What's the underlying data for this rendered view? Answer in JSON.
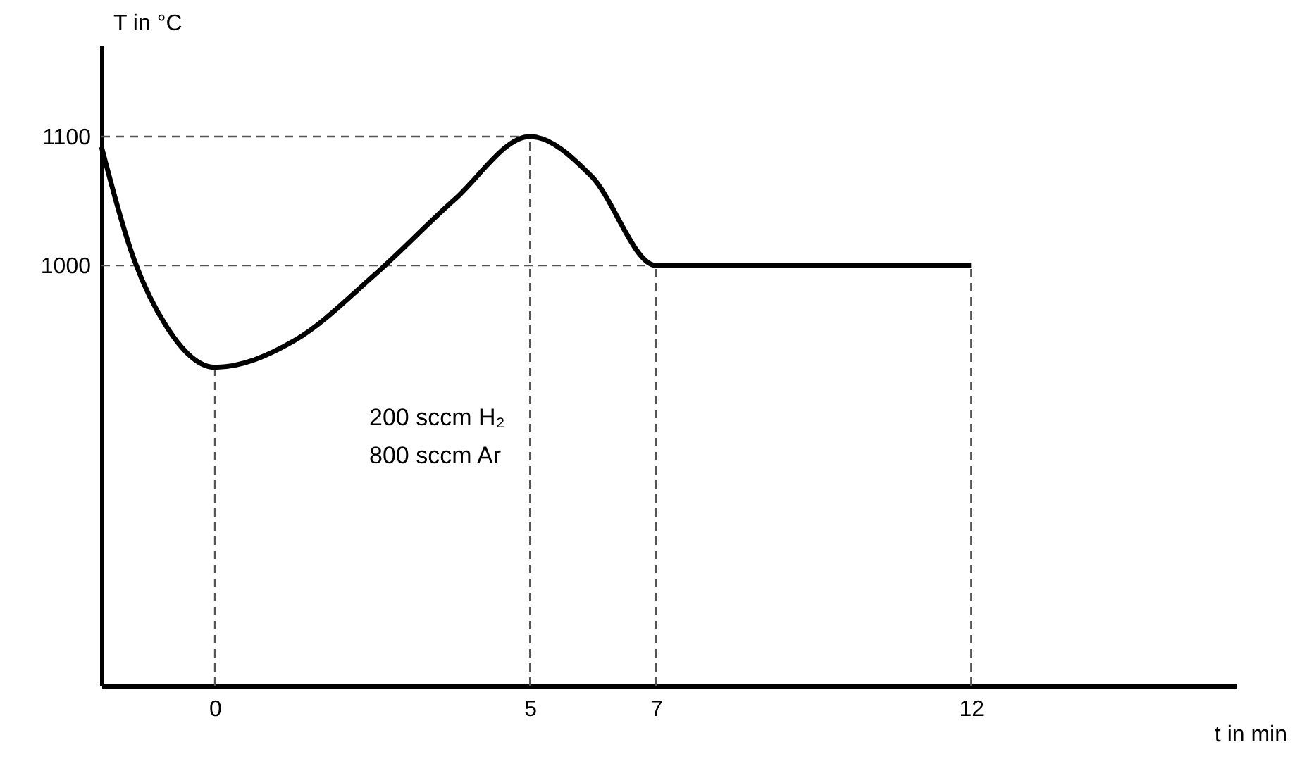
{
  "chart_data": {
    "type": "line",
    "xlabel": "t in min",
    "ylabel": "T in °C",
    "x": [
      -1.8,
      -1.27,
      -0.76,
      0,
      1.27,
      2.54,
      3.8,
      5,
      5.98,
      7,
      12
    ],
    "series": [
      {
        "color": "#000000",
        "values": [
          1092,
          1003,
          952,
          921,
          942,
          993,
          1051,
          1100,
          1069,
          1000,
          1000
        ]
      }
    ],
    "xlim": [
      -1.8,
      16.2
    ],
    "xticks": [
      0,
      5,
      7,
      12
    ],
    "ylim": [
      674,
      1171
    ],
    "yticks": [
      1000,
      1100
    ],
    "grid": false,
    "marker": "none",
    "line_style": "solid",
    "ref_lines": [
      {
        "axis": "x",
        "value": 0,
        "line_style": "dashed"
      },
      {
        "axis": "x",
        "value": 5,
        "line_style": "dashed"
      },
      {
        "axis": "x",
        "value": 7,
        "line_style": "dashed"
      },
      {
        "axis": "x",
        "value": 12,
        "line_style": "dashed"
      },
      {
        "axis": "y",
        "value": 1000,
        "line_style": "dashed"
      },
      {
        "axis": "y",
        "value": 1100,
        "line_style": "dashed"
      }
    ],
    "annotations": [
      "200 sccm H₂",
      "800 sccm Ar"
    ]
  }
}
